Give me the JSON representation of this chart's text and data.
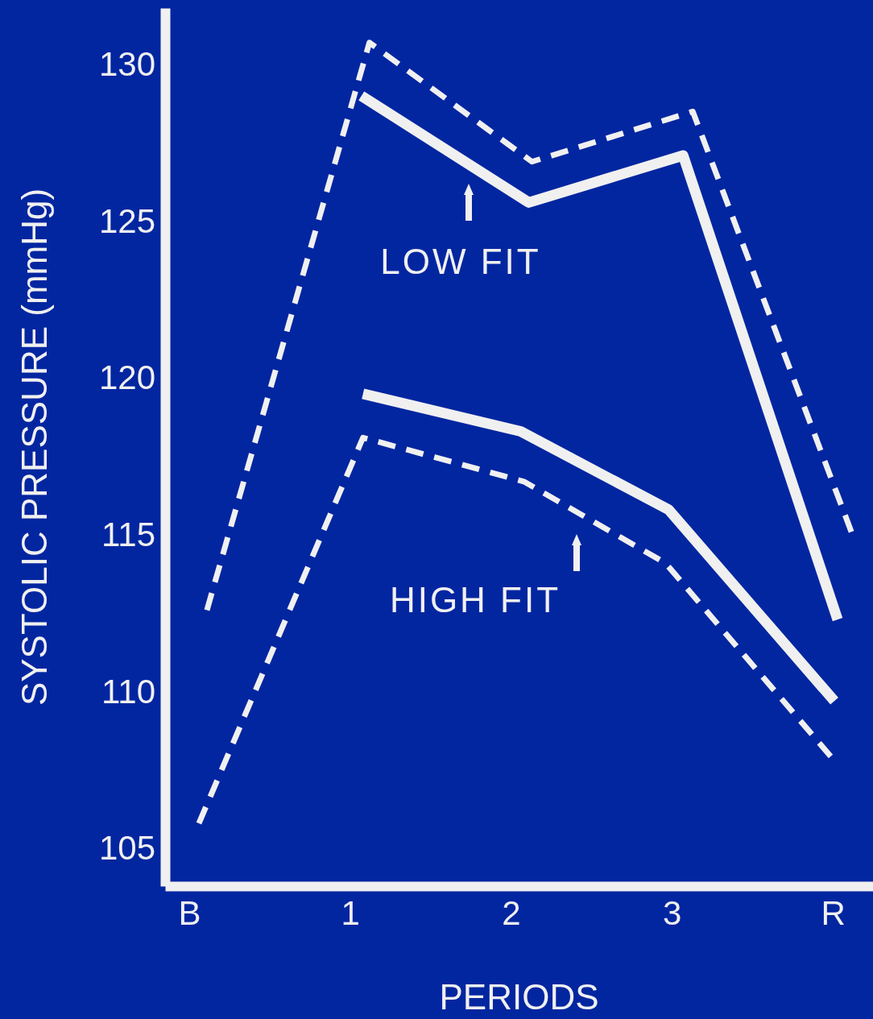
{
  "chart_data": {
    "type": "line",
    "xlabel": "PERIODS",
    "ylabel": "SYSTOLIC  PRESSURE  (mmHg)",
    "xlim": [
      -0.15,
      4.25
    ],
    "xticks": [
      {
        "value": 0,
        "label": "B"
      },
      {
        "value": 1,
        "label": "1"
      },
      {
        "value": 2,
        "label": "2"
      },
      {
        "value": 3,
        "label": "3"
      },
      {
        "value": 4,
        "label": "R"
      }
    ],
    "ylim": [
      103.8,
      131.8
    ],
    "yticks": [
      105,
      110,
      115,
      120,
      125,
      130
    ],
    "grid": false,
    "marker": "none",
    "series": [
      {
        "color": "#f0f0f0",
        "line_style": "dashed",
        "x": [
          0.11,
          1.12,
          2.13,
          3.13,
          4.13
        ],
        "values": [
          112.6,
          130.7,
          126.9,
          128.5,
          114.9
        ]
      },
      {
        "color": "#f0f0f0",
        "line_style": "solid",
        "x": [
          1.07,
          2.11,
          3.07,
          4.03
        ],
        "values": [
          129.0,
          125.6,
          127.1,
          112.3
        ]
      },
      {
        "color": "#f0f0f0",
        "line_style": "solid",
        "x": [
          1.08,
          2.06,
          2.98,
          4.01
        ],
        "values": [
          119.5,
          118.3,
          115.8,
          109.7
        ]
      },
      {
        "color": "#f0f0f0",
        "line_style": "dashed",
        "x": [
          0.06,
          1.08,
          2.08,
          2.96,
          4.01
        ],
        "values": [
          105.8,
          118.1,
          116.7,
          114.1,
          107.8
        ]
      }
    ],
    "annotations": [
      "LOW FIT",
      "HIGH FIT"
    ]
  }
}
